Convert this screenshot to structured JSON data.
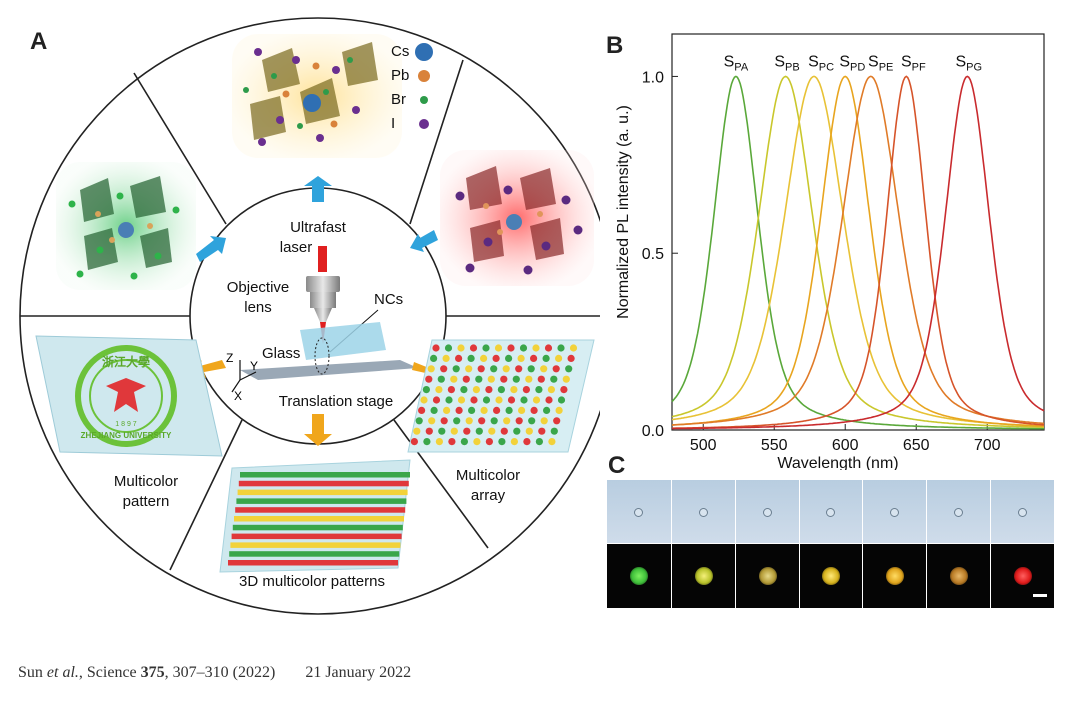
{
  "panels": {
    "a": "A",
    "b": "B",
    "c": "C"
  },
  "panelA": {
    "center": {
      "laser1": "Ultrafast",
      "laser2": "laser",
      "lens1": "Objective",
      "lens2": "lens",
      "ncs": "NCs",
      "glass": "Glass",
      "stage": "Translation stage",
      "axis_x": "X",
      "axis_y": "Y",
      "axis_z": "Z"
    },
    "legend": [
      {
        "label": "Cs",
        "color": "#2f6fb3"
      },
      {
        "label": "Pb",
        "color": "#d9823a"
      },
      {
        "label": "Br",
        "color": "#2e9b4a"
      },
      {
        "label": "I",
        "color": "#6a2f8f"
      }
    ],
    "labels": {
      "pattern1": "Multicolor",
      "pattern2": "pattern",
      "array1": "Multicolor",
      "array2": "array",
      "patterns3d": "3D multicolor  patterns"
    },
    "seal_text": {
      "top": "浙江大學",
      "bottom": "ZHEJIANG UNIVERSITY",
      "year": "1 8 9 7"
    },
    "colors": {
      "blueArrow": "#2fa3dc",
      "yellowArrow": "#f0a61c",
      "green": "#3aa64a",
      "red": "#e0383b",
      "yellow": "#f2d23a"
    }
  },
  "chart_data": {
    "type": "line",
    "xlabel": "Wavelength (nm)",
    "ylabel": "Normalized PL intensity (a. u.)",
    "xlim": [
      478,
      740
    ],
    "ylim": [
      0,
      1.12
    ],
    "xticks": [
      500,
      550,
      600,
      650,
      700
    ],
    "yticks": [
      0.0,
      0.5,
      1.0
    ],
    "ytick_labels": [
      "0.0",
      "0.5",
      "1.0"
    ],
    "series": [
      {
        "name": "S",
        "sub": "PA",
        "peak": 523,
        "fwhm": 36,
        "color": "#5aa83a",
        "label_x": 523
      },
      {
        "name": "S",
        "sub": "PB",
        "peak": 558,
        "fwhm": 44,
        "color": "#c9c72c",
        "label_x": 559
      },
      {
        "name": "S",
        "sub": "PC",
        "peak": 578,
        "fwhm": 48,
        "color": "#e8c236",
        "label_x": 583
      },
      {
        "name": "S",
        "sub": "PD",
        "peak": 600,
        "fwhm": 40,
        "color": "#e8a51f",
        "label_x": 605
      },
      {
        "name": "S",
        "sub": "PE",
        "peak": 618,
        "fwhm": 46,
        "color": "#e07b28",
        "label_x": 625
      },
      {
        "name": "S",
        "sub": "PF",
        "peak": 643,
        "fwhm": 32,
        "color": "#d6542a",
        "label_x": 648
      },
      {
        "name": "S",
        "sub": "PG",
        "peak": 686,
        "fwhm": 36,
        "color": "#c92b2e",
        "label_x": 687
      }
    ]
  },
  "panelC": {
    "cells": [
      {
        "glow": "#3fbf3a",
        "core": "#7cf060"
      },
      {
        "glow": "#b8c22a",
        "core": "#f5f07a"
      },
      {
        "glow": "#b39a35",
        "core": "#e6d98a"
      },
      {
        "glow": "#d6b21d",
        "core": "#ffe97a"
      },
      {
        "glow": "#e0a41c",
        "core": "#ffdc63"
      },
      {
        "glow": "#b87a24",
        "core": "#e8b86a"
      },
      {
        "glow": "#e01b1b",
        "core": "#ff6060"
      }
    ]
  },
  "citation": {
    "authors": "Sun ",
    "etal": "et al.",
    "journal": ", Science ",
    "volume": "375",
    "pages": ", 307–310 (2022)",
    "date": "21 January 2022"
  }
}
